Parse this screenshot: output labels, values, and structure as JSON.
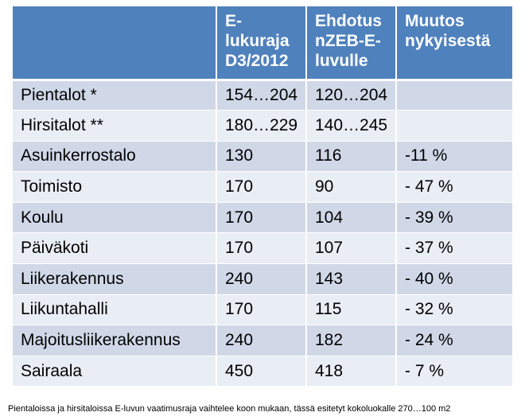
{
  "table": {
    "headers": [
      "",
      "E-lukuraja D3/2012",
      "Ehdotus nZEB-E-luvulle",
      "Muutos nykyisestä"
    ],
    "header_lines": [
      [],
      [
        "E-lukuraja",
        "D3/2012"
      ],
      [
        "Ehdotus",
        "nZEB-E-",
        "luvulle"
      ],
      [
        "Muutos",
        "nykyisestä"
      ]
    ],
    "rows": [
      [
        "Pientalot *",
        "154…204",
        "120…204",
        ""
      ],
      [
        "Hirsitalot **",
        "180…229",
        "140…245",
        ""
      ],
      [
        "Asuinkerrostalo",
        "130",
        "116",
        "-11 %"
      ],
      [
        "Toimisto",
        "170",
        "90",
        "- 47 %"
      ],
      [
        "Koulu",
        "170",
        "104",
        "- 39 %"
      ],
      [
        "Päiväkoti",
        "170",
        "107",
        "- 37 %"
      ],
      [
        "Liikerakennus",
        "240",
        "143",
        "- 40 %"
      ],
      [
        "Liikuntahalli",
        "170",
        "115",
        "- 32 %"
      ],
      [
        "Majoitusliikerakennus",
        "240",
        "182",
        "- 24 %"
      ],
      [
        "Sairaala",
        "450",
        "418",
        "- 7 %"
      ]
    ]
  },
  "footnote": "Pientaloissa ja hirsitaloissa  E-luvun vaatimusraja  vaihtelee koon mukaan, tässä  esitetyt kokoluokalle 270…100 m2",
  "colors": {
    "header_bg": "#4f81bd",
    "row_odd_bg": "#d0d8e8",
    "row_even_bg": "#e9edf4"
  }
}
